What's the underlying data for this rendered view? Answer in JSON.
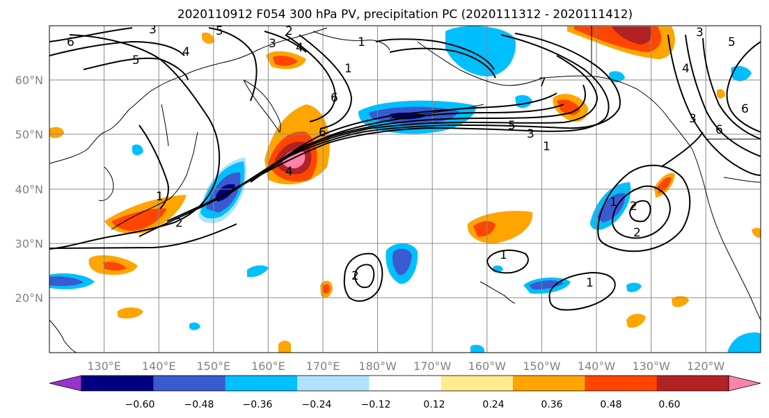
{
  "title": "2020110912 F054 300 hPa PV, precipitation PC (2020111312 - 2020111412)",
  "map": {
    "lon_labels": [
      "130°E",
      "140°E",
      "150°E",
      "160°E",
      "170°E",
      "180°W",
      "170°W",
      "160°W",
      "150°W",
      "140°W",
      "130°W",
      "120°W"
    ],
    "lat_labels": [
      "60°N",
      "50°N",
      "40°N",
      "30°N",
      "20°N"
    ],
    "contour_labels": [
      {
        "text": "6"
      },
      {
        "text": "5"
      },
      {
        "text": "4"
      },
      {
        "text": "3"
      },
      {
        "text": "5"
      },
      {
        "text": "3"
      },
      {
        "text": "2"
      },
      {
        "text": "4"
      },
      {
        "text": "1"
      },
      {
        "text": "1"
      },
      {
        "text": "6"
      },
      {
        "text": "6"
      },
      {
        "text": "4"
      },
      {
        "text": "1"
      },
      {
        "text": "2"
      },
      {
        "text": "5"
      },
      {
        "text": "3"
      },
      {
        "text": "1"
      },
      {
        "text": "7"
      },
      {
        "text": "3"
      },
      {
        "text": "4"
      },
      {
        "text": "5"
      },
      {
        "text": "3"
      },
      {
        "text": "6"
      },
      {
        "text": "6"
      },
      {
        "text": "1"
      },
      {
        "text": "2"
      },
      {
        "text": "2"
      },
      {
        "text": "1"
      },
      {
        "text": "1"
      },
      {
        "text": "2"
      }
    ]
  },
  "colorbar": {
    "tick_labels": [
      "−0.60",
      "−0.48",
      "−0.36",
      "−0.24",
      "−0.12",
      "0.12",
      "0.24",
      "0.36",
      "0.48",
      "0.60"
    ],
    "colors": [
      "#9932cc",
      "#000080",
      "#3a5bcf",
      "#00bfff",
      "#b0e2ff",
      "#ffffff",
      "#ffec8b",
      "#ffa500",
      "#ff4500",
      "#b22222",
      "#ff82ab"
    ]
  },
  "colors": {
    "land": "#000000",
    "grid": "#888888",
    "contour": "#000000"
  }
}
